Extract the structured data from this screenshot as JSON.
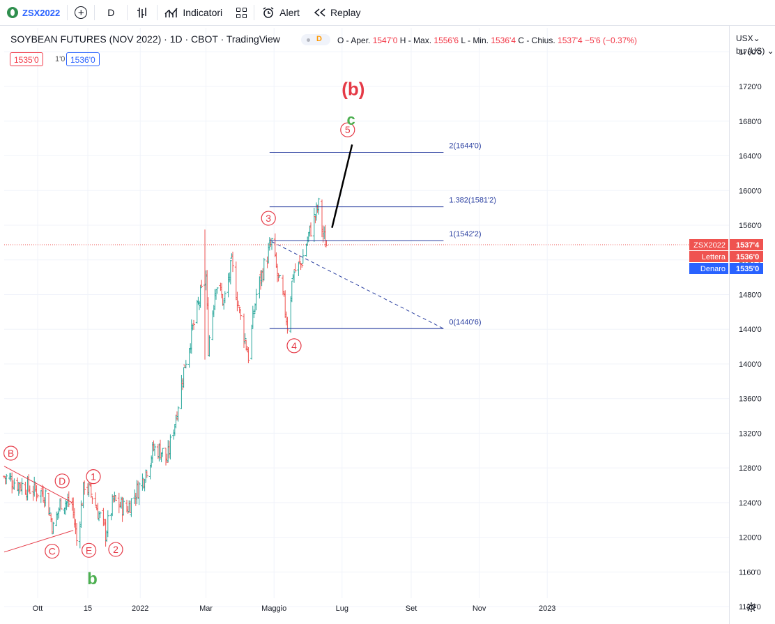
{
  "toolbar": {
    "symbol": "ZSX2022",
    "interval": "D",
    "indicators_label": "Indicatori",
    "alert_label": "Alert",
    "replay_label": "Replay"
  },
  "legend": {
    "title": "SOYBEAN FUTURES (NOV 2022) · 1D · CBOT · TradingView",
    "badge": "D",
    "o_label": "O - Aper.",
    "o_val": "1547'0",
    "h_label": "H - Max.",
    "h_val": "1556'6",
    "l_label": "L - Min.",
    "l_val": "1536'4",
    "c_label": "C - Chius.",
    "c_val": "1537'4",
    "change": "−5'6 (−0.37%)"
  },
  "order_box": {
    "sell": "1535'0",
    "spread": "1'0",
    "buy": "1536'0"
  },
  "currency": {
    "line1": "USX⌄",
    "line2": "bu (US) ⌄"
  },
  "colors": {
    "up": "#26a69a",
    "down": "#ef5350",
    "fib": "#2a3fa0",
    "wave_red": "#e53946",
    "wave_green": "#4caf50",
    "blue_tag": "#2962ff"
  },
  "chart_data": {
    "type": "bar",
    "title": "SOYBEAN FUTURES (NOV 2022)",
    "y_axis": {
      "min": 1100,
      "max": 1790,
      "ticks": [
        1760,
        1720,
        1680,
        1640,
        1600,
        1560,
        1520,
        1480,
        1440,
        1400,
        1360,
        1320,
        1280,
        1240,
        1200,
        1160,
        1120
      ],
      "tick_labels": [
        "1760'0",
        "1720'0",
        "1680'0",
        "1640'0",
        "1600'0",
        "1560'0",
        "1520'0",
        "1480'0",
        "1440'0",
        "1400'0",
        "1360'0",
        "1320'0",
        "1280'0",
        "1240'0",
        "1200'0",
        "1160'0",
        "1120'0"
      ]
    },
    "x_axis": {
      "labels": [
        "Ott",
        "15",
        "2022",
        "Mar",
        "Maggio",
        "Lug",
        "Set",
        "Nov",
        "2023"
      ]
    },
    "price_path": [
      [
        "2021-09-01",
        1270
      ],
      [
        "2021-09-20",
        1258
      ],
      [
        "2021-10-08",
        1250
      ],
      [
        "2021-10-15",
        1210
      ],
      [
        "2021-10-22",
        1242
      ],
      [
        "2021-11-01",
        1238
      ],
      [
        "2021-11-05",
        1196
      ],
      [
        "2021-11-12",
        1262
      ],
      [
        "2021-11-19",
        1248
      ],
      [
        "2021-12-01",
        1205
      ],
      [
        "2021-12-08",
        1242
      ],
      [
        "2021-12-20",
        1232
      ],
      [
        "2022-01-03",
        1266
      ],
      [
        "2022-01-13",
        1302
      ],
      [
        "2022-01-20",
        1300
      ],
      [
        "2022-01-25",
        1288
      ],
      [
        "2022-02-02",
        1340
      ],
      [
        "2022-02-10",
        1400
      ],
      [
        "2022-02-17",
        1440
      ],
      [
        "2022-02-24",
        1478
      ],
      [
        "2022-03-01",
        1500
      ],
      [
        "2022-03-03",
        1420
      ],
      [
        "2022-03-10",
        1495
      ],
      [
        "2022-03-17",
        1470
      ],
      [
        "2022-03-24",
        1515
      ],
      [
        "2022-04-01",
        1452
      ],
      [
        "2022-04-08",
        1410
      ],
      [
        "2022-04-15",
        1480
      ],
      [
        "2022-04-22",
        1512
      ],
      [
        "2022-04-29",
        1540
      ],
      [
        "2022-05-04",
        1502
      ],
      [
        "2022-05-10",
        1470
      ],
      [
        "2022-05-13",
        1445
      ],
      [
        "2022-05-18",
        1505
      ],
      [
        "2022-05-25",
        1515
      ],
      [
        "2022-06-01",
        1548
      ],
      [
        "2022-06-08",
        1575
      ],
      [
        "2022-06-10",
        1582
      ],
      [
        "2022-06-14",
        1548
      ],
      [
        "2022-06-17",
        1537.5
      ]
    ],
    "series_first_date": "2021-09-01",
    "series_last_date": "2022-06-17",
    "last_price": 1537.5,
    "fib_levels": [
      {
        "label": "2(1644'0)",
        "value": 1644
      },
      {
        "label": "1.382(1581'2)",
        "value": 1581.25
      },
      {
        "label": "1(1542'2)",
        "value": 1542.25
      },
      {
        "label": "0(1440'6)",
        "value": 1440.75
      }
    ],
    "price_tags": [
      {
        "name": "ZSX2022",
        "value": "1537'4",
        "price": 1537.5
      },
      {
        "name": "Lettera",
        "value": "1536'0",
        "price": 1536
      },
      {
        "name": "Denaro",
        "value": "1535'0",
        "price": 1535
      }
    ],
    "wave_labels": {
      "big_b": "(b)",
      "c": "c",
      "b": "b",
      "n5": "5",
      "n3": "3",
      "n4": "4",
      "n1": "1",
      "n2": "2",
      "B": "B",
      "C": "C",
      "D": "D",
      "E": "E"
    },
    "grid": true
  }
}
